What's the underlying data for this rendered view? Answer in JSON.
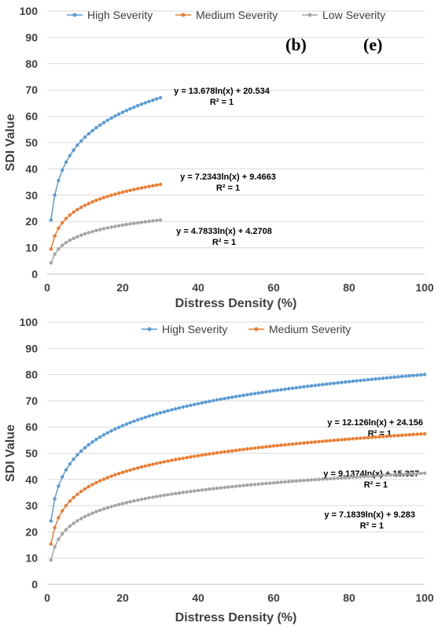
{
  "chart_data": [
    {
      "type": "line",
      "panel_labels": [
        "(b)",
        "(e)"
      ],
      "xlabel": "Distress Density (%)",
      "ylabel": "SDI  Value",
      "xlim": [
        0,
        100
      ],
      "ylim": [
        0,
        100
      ],
      "xticks": [
        0,
        20,
        40,
        60,
        80,
        100
      ],
      "yticks": [
        0,
        10,
        20,
        30,
        40,
        50,
        60,
        70,
        80,
        90,
        100
      ],
      "grid": "horizontal",
      "legend_position": "top",
      "x_range": [
        1,
        30
      ],
      "series": [
        {
          "name": "High Severity",
          "color": "#5B9BD5",
          "a": 13.678,
          "b": 20.534,
          "equation": "y = 13.678ln(x) + 20.534",
          "r2": "R² = 1"
        },
        {
          "name": "Medium Severity",
          "color": "#ED7D31",
          "a": 7.2343,
          "b": 9.4663,
          "equation": "y = 7.2343ln(x) + 9.4663",
          "r2": "R² = 1"
        },
        {
          "name": "Low Severity",
          "color": "#A5A5A5",
          "a": 4.7833,
          "b": 4.2708,
          "equation": "y = 4.7833ln(x) + 4.2708",
          "r2": "R² = 1"
        }
      ]
    },
    {
      "type": "line",
      "xlabel": "Distress Density (%)",
      "ylabel": "SDI  Value",
      "xlim": [
        0,
        100
      ],
      "ylim": [
        0,
        100
      ],
      "xticks": [
        0,
        20,
        40,
        60,
        80,
        100
      ],
      "yticks": [
        0,
        10,
        20,
        30,
        40,
        50,
        60,
        70,
        80,
        90,
        100
      ],
      "grid": "horizontal",
      "legend_position": "top",
      "x_range": [
        1,
        100
      ],
      "series": [
        {
          "name": "High Severity",
          "color": "#5B9BD5",
          "a": 12.126,
          "b": 24.156,
          "equation": "y = 12.126ln(x) + 24.156",
          "r2": "R² = 1"
        },
        {
          "name": "Medium Severity",
          "color": "#ED7D31",
          "a": 9.1374,
          "b": 15.337,
          "equation": "y = 9.1374ln(x) + 15.337",
          "r2": "R² = 1"
        },
        {
          "name": "",
          "color": "#A5A5A5",
          "a": 7.1839,
          "b": 9.283,
          "equation": "y = 7.1839ln(x) + 9.283",
          "r2": "R² = 1"
        }
      ]
    }
  ]
}
